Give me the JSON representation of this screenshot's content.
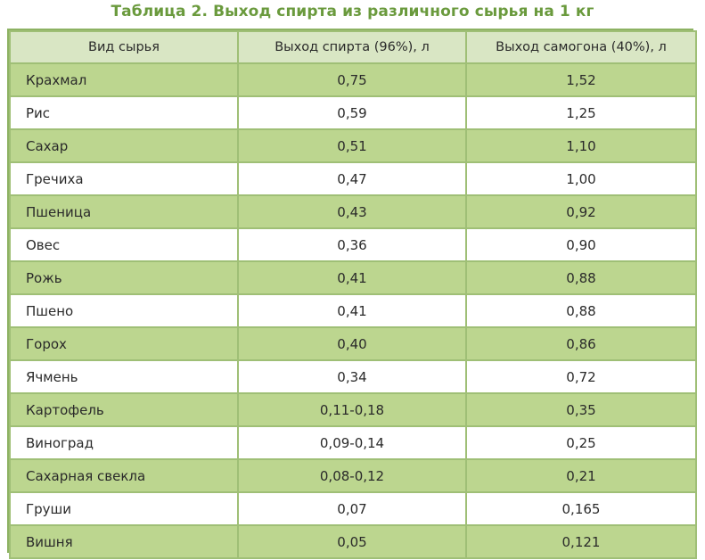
{
  "title": "Таблица 2. Выход спирта из различного сырья на 1 кг",
  "headers": [
    "Вид сырья",
    "Выход спирта (96%), л",
    "Выход самогона (40%), л"
  ],
  "rows": [
    {
      "name": "Крахмал",
      "spirit": "0,75",
      "moonshine": "1,52"
    },
    {
      "name": "Рис",
      "spirit": "0,59",
      "moonshine": "1,25"
    },
    {
      "name": "Сахар",
      "spirit": "0,51",
      "moonshine": "1,10"
    },
    {
      "name": "Гречиха",
      "spirit": "0,47",
      "moonshine": "1,00"
    },
    {
      "name": "Пшеница",
      "spirit": "0,43",
      "moonshine": "0,92"
    },
    {
      "name": "Овес",
      "spirit": "0,36",
      "moonshine": "0,90"
    },
    {
      "name": "Рожь",
      "spirit": "0,41",
      "moonshine": "0,88"
    },
    {
      "name": "Пшено",
      "spirit": "0,41",
      "moonshine": "0,88"
    },
    {
      "name": "Горох",
      "spirit": "0,40",
      "moonshine": "0,86"
    },
    {
      "name": "Ячмень",
      "spirit": "0,34",
      "moonshine": "0,72"
    },
    {
      "name": "Картофель",
      "spirit": "0,11-0,18",
      "moonshine": "0,35"
    },
    {
      "name": "Виноград",
      "spirit": "0,09-0,14",
      "moonshine": "0,25"
    },
    {
      "name": "Сахарная свекла",
      "spirit": "0,08-0,12",
      "moonshine": "0,21"
    },
    {
      "name": "Груши",
      "spirit": "0,07",
      "moonshine": "0,165"
    },
    {
      "name": "Вишня",
      "spirit": "0,05",
      "moonshine": "0,121"
    }
  ],
  "colors": {
    "title": "#6a9a3d",
    "header_bg": "#d9e6c4",
    "row_green": "#bcd68f",
    "row_white": "#ffffff",
    "border": "#9fbf76"
  }
}
